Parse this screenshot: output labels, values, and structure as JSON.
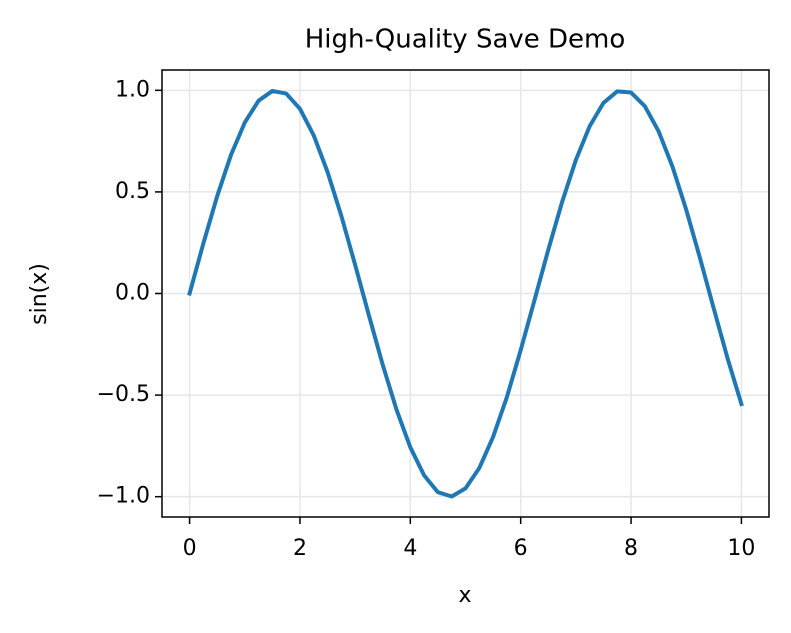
{
  "chart_data": {
    "type": "line",
    "title": "High-Quality Save Demo",
    "xlabel": "x",
    "ylabel": "sin(x)",
    "x": [
      0,
      0.25,
      0.5,
      0.75,
      1,
      1.25,
      1.5,
      1.75,
      2,
      2.25,
      2.5,
      2.75,
      3,
      3.25,
      3.5,
      3.75,
      4,
      4.25,
      4.5,
      4.75,
      5,
      5.25,
      5.5,
      5.75,
      6,
      6.25,
      6.5,
      6.75,
      7,
      7.25,
      7.5,
      7.75,
      8,
      8.25,
      8.5,
      8.75,
      9,
      9.25,
      9.5,
      9.75,
      10
    ],
    "values": [
      0,
      0.247,
      0.479,
      0.682,
      0.841,
      0.949,
      0.997,
      0.984,
      0.909,
      0.778,
      0.598,
      0.382,
      0.141,
      -0.108,
      -0.351,
      -0.572,
      -0.757,
      -0.895,
      -0.978,
      -0.999,
      -0.959,
      -0.859,
      -0.706,
      -0.51,
      -0.279,
      -0.033,
      0.215,
      0.45,
      0.657,
      0.823,
      0.938,
      0.995,
      0.989,
      0.922,
      0.798,
      0.625,
      0.412,
      0.174,
      -0.075,
      -0.32,
      -0.544
    ],
    "color": "#1f77b4",
    "xlim": [
      -0.5,
      10.5
    ],
    "xticks": [
      0,
      2,
      4,
      6,
      8,
      10
    ],
    "ylim": [
      -1.1,
      1.1
    ],
    "yticks": [
      {
        "value": -1,
        "label": "−1.0"
      },
      {
        "value": -0.5,
        "label": "−0.5"
      },
      {
        "value": 0,
        "label": "0.0"
      },
      {
        "value": 0.5,
        "label": "0.5"
      },
      {
        "value": 1,
        "label": "1.0"
      }
    ],
    "grid": true
  }
}
